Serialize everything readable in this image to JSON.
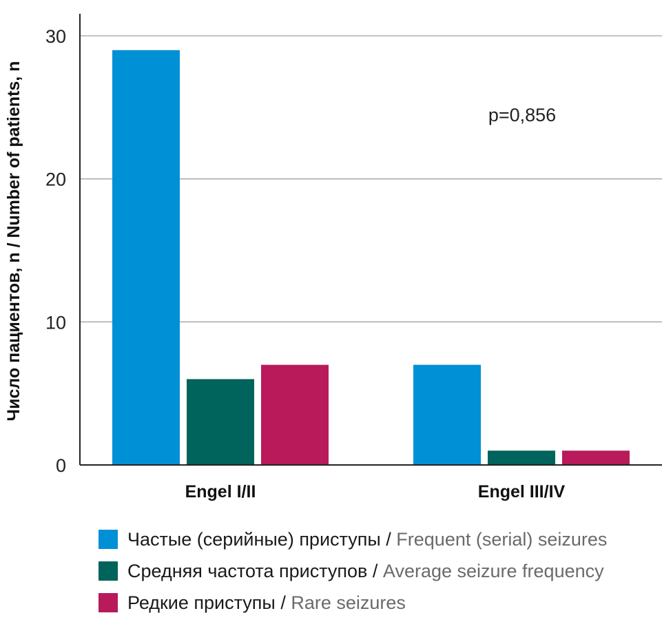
{
  "chart_data": {
    "type": "bar",
    "categories": [
      "Engel I/II",
      "Engel III/IV"
    ],
    "series": [
      {
        "name": "Частые (серийные) приступы / Frequent (serial) seizures",
        "name_ru": "Частые (серийные) приступы",
        "name_en": "Frequent (serial) seizures",
        "color": "#0090d6",
        "values": [
          29,
          7
        ]
      },
      {
        "name": "Средняя частота приступов / Average seizure frequency",
        "name_ru": "Средняя частота приступов",
        "name_en": "Average seizure frequency",
        "color": "#00635c",
        "values": [
          6,
          1
        ]
      },
      {
        "name": "Редкие приступы / Rare seizures",
        "name_ru": "Редкие приступы",
        "name_en": "Rare seizures",
        "color": "#b81a5a",
        "values": [
          7,
          1
        ]
      }
    ],
    "ylabel": "Число пациентов, n / Number of patients, n",
    "xlabel": "",
    "ylim": [
      0,
      30
    ],
    "yticks": [
      "0",
      "10",
      "20",
      "30"
    ],
    "grid": true,
    "legend_position": "bottom",
    "annotation": "p=0,856"
  },
  "legend_separator": "/"
}
